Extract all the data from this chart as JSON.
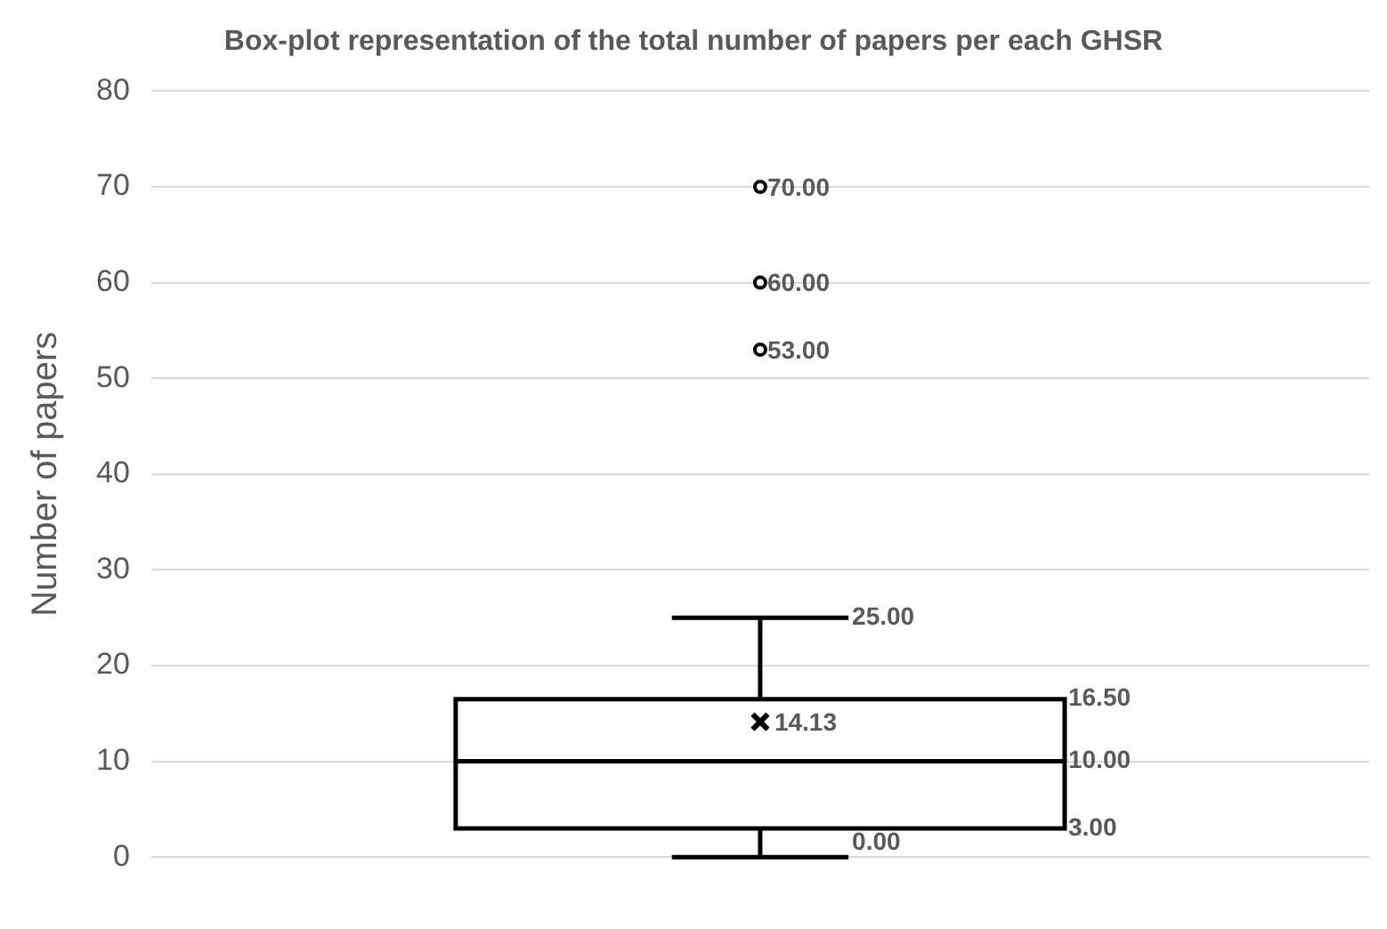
{
  "chart_data": {
    "type": "box",
    "title": "Box-plot representation of the total number of papers per each GHSR",
    "ylabel": "Number of papers",
    "categories": [
      null
    ],
    "boxes": [
      {
        "low": 0,
        "q1": 3,
        "median": 10,
        "q3": 16.5,
        "high": 25,
        "mean": 14.13,
        "outliers": [
          53,
          60,
          70
        ]
      }
    ],
    "color": "#000000",
    "ylim": [
      0,
      80
    ],
    "yticks": [
      0,
      10,
      20,
      30,
      40,
      50,
      60,
      70,
      80
    ],
    "grid": "y",
    "legend": false,
    "annotations": [
      "70.00",
      "60.00",
      "53.00",
      "25.00",
      "16.50",
      "14.13",
      "10.00",
      "3.00",
      "0.00"
    ]
  }
}
